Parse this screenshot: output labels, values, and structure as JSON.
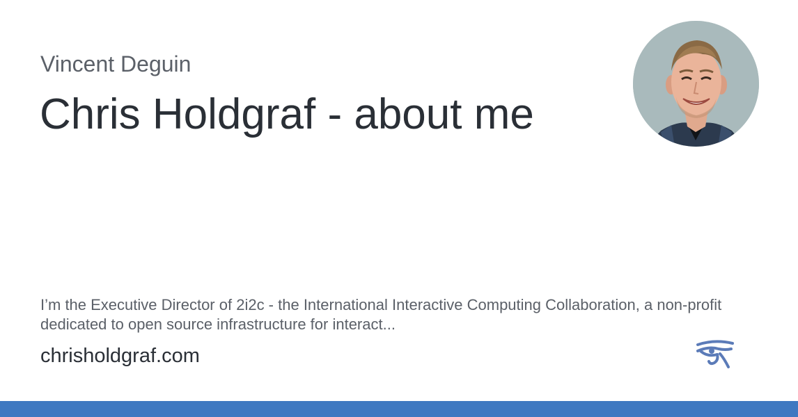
{
  "card": {
    "author": "Vincent Deguin",
    "title": "Chris Holdgraf - about me",
    "description": "I’m the Executive Director of 2i2c - the International Interactive Computing Collaboration, a non-profit dedicated to open source infrastructure for interact...",
    "site": "chrisholdgraf.com"
  },
  "icons": {
    "avatar": "profile-photo",
    "logo": "eye-of-horus-icon"
  },
  "colors": {
    "accent_bar": "#3f78c1",
    "logo": "#5b7bb8",
    "title_text": "#2a2f36",
    "muted_text": "#5b6068"
  }
}
